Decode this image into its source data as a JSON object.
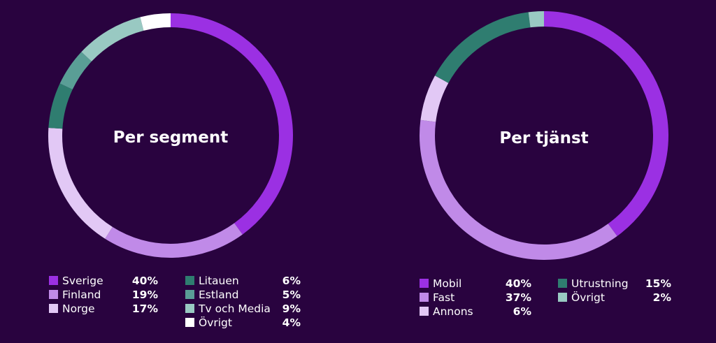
{
  "chart_data": [
    {
      "type": "pie",
      "title": "Per segment",
      "categories": [
        "Sverige",
        "Finland",
        "Norge",
        "Litauen",
        "Estland",
        "Tv och Media",
        "Övrigt"
      ],
      "values": [
        40,
        19,
        17,
        6,
        5,
        9,
        4
      ],
      "value_labels": [
        "40%",
        "19%",
        "17%",
        "6%",
        "5%",
        "9%",
        "4%"
      ],
      "colors": [
        "#9b30e3",
        "#c08ae8",
        "#e2c8f5",
        "#2f7d70",
        "#5a9e96",
        "#99c9c2",
        "#ffffff"
      ],
      "style": "donut",
      "legend_position": "bottom"
    },
    {
      "type": "pie",
      "title": "Per tjänst",
      "categories": [
        "Mobil",
        "Fast",
        "Annons",
        "Utrustning",
        "Övrigt"
      ],
      "values": [
        40,
        37,
        6,
        15,
        2
      ],
      "value_labels": [
        "40%",
        "37%",
        "6%",
        "15%",
        "2%"
      ],
      "colors": [
        "#9b30e3",
        "#c08ae8",
        "#e2c8f5",
        "#2f7d70",
        "#99c9c2"
      ],
      "style": "donut",
      "legend_position": "bottom"
    }
  ]
}
